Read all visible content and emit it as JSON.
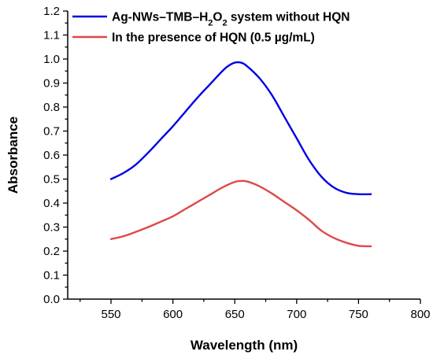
{
  "chart_data": {
    "type": "line",
    "title": "",
    "xlabel": "Wavelength (nm)",
    "ylabel": "Absorbance",
    "xlim": [
      515,
      800
    ],
    "ylim": [
      0.0,
      1.2
    ],
    "x_ticks": [
      "550",
      "600",
      "650",
      "700",
      "750",
      "800"
    ],
    "y_ticks": [
      "0.0",
      "0.1",
      "0.2",
      "0.3",
      "0.4",
      "0.5",
      "0.6",
      "0.7",
      "0.8",
      "0.9",
      "1.0",
      "1.1",
      "1.2"
    ],
    "grid": false,
    "legend_position": "top-left",
    "series": [
      {
        "name": "Ag-NWs–TMB–H2O2 system without HQN",
        "legend_parts": [
          "Ag-NWs–TMB–H",
          "2",
          "O",
          "2",
          " system without HQN"
        ],
        "color": "#0000e6",
        "x": [
          550,
          560,
          570,
          580,
          590,
          600,
          610,
          620,
          630,
          640,
          645,
          650,
          655,
          660,
          670,
          680,
          690,
          700,
          710,
          720,
          730,
          740,
          750,
          760
        ],
        "y": [
          0.5,
          0.525,
          0.56,
          0.61,
          0.665,
          0.72,
          0.78,
          0.84,
          0.895,
          0.95,
          0.972,
          0.985,
          0.985,
          0.97,
          0.92,
          0.85,
          0.76,
          0.67,
          0.58,
          0.51,
          0.465,
          0.443,
          0.437,
          0.437
        ]
      },
      {
        "name": "In the presence of HQN (0.5 µg/mL)",
        "color": "#e04848",
        "x": [
          550,
          560,
          570,
          580,
          590,
          600,
          610,
          620,
          630,
          640,
          650,
          655,
          660,
          670,
          680,
          690,
          700,
          710,
          720,
          730,
          740,
          750,
          760
        ],
        "y": [
          0.25,
          0.262,
          0.28,
          0.3,
          0.322,
          0.345,
          0.375,
          0.405,
          0.435,
          0.465,
          0.488,
          0.492,
          0.49,
          0.47,
          0.44,
          0.405,
          0.37,
          0.33,
          0.285,
          0.255,
          0.235,
          0.222,
          0.22
        ]
      }
    ]
  }
}
